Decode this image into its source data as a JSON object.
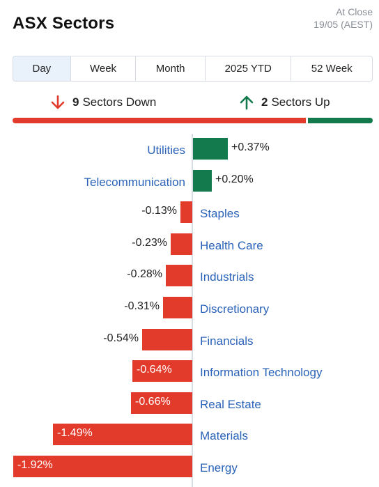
{
  "header": {
    "title": "ASX Sectors",
    "status_line1": "At Close",
    "status_line2": "19/05 (AEST)"
  },
  "tabs": [
    {
      "label": "Day",
      "active": true
    },
    {
      "label": "Week",
      "active": false
    },
    {
      "label": "Month",
      "active": false
    },
    {
      "label": "2025 YTD",
      "active": false
    },
    {
      "label": "52 Week",
      "active": false
    }
  ],
  "summary": {
    "down_count": "9",
    "down_text": "Sectors Down",
    "up_count": "2",
    "up_text": "Sectors Up"
  },
  "colors": {
    "positive": "#137a4e",
    "negative": "#e23b2c",
    "link": "#2a63b9"
  },
  "chart_data": {
    "type": "bar",
    "categories": [
      "Utilities",
      "Telecommunication",
      "Staples",
      "Health Care",
      "Industrials",
      "Discretionary",
      "Financials",
      "Information Technology",
      "Real Estate",
      "Materials",
      "Energy"
    ],
    "values": [
      0.37,
      0.2,
      -0.13,
      -0.23,
      -0.28,
      -0.31,
      -0.54,
      -0.64,
      -0.66,
      -1.49,
      -1.92
    ],
    "value_labels": [
      "+0.37%",
      "+0.20%",
      "-0.13%",
      "-0.23%",
      "-0.28%",
      "-0.31%",
      "-0.54%",
      "-0.64%",
      "-0.66%",
      "-1.49%",
      "-1.92%"
    ]
  }
}
